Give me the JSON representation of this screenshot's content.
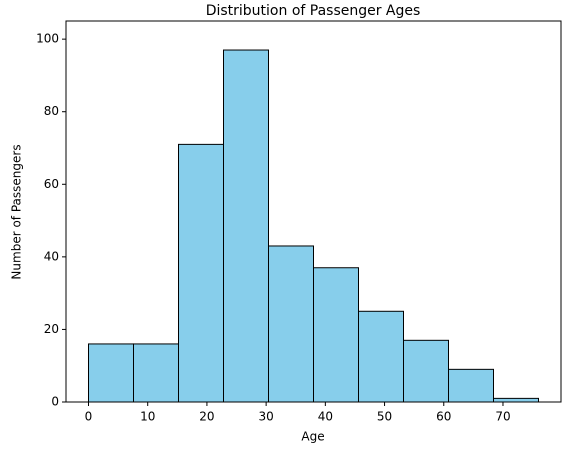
{
  "chart_data": {
    "type": "histogram",
    "title": "Distribution of Passenger Ages",
    "xlabel": "Age",
    "ylabel": "Number of Passengers",
    "bins": [
      0,
      7.6,
      15.2,
      22.8,
      30.4,
      38,
      45.6,
      53.2,
      60.8,
      68.4,
      76
    ],
    "values": [
      16,
      16,
      71,
      97,
      43,
      37,
      25,
      17,
      9,
      1
    ],
    "color": "#87ceeb",
    "edgecolor": "#000000",
    "xlim": [
      -3.8,
      79.8
    ],
    "xticks": [
      0,
      10,
      20,
      30,
      40,
      50,
      60,
      70
    ],
    "ylim": [
      0,
      105
    ],
    "yticks": [
      0,
      20,
      40,
      60,
      80,
      100
    ],
    "grid": false
  }
}
